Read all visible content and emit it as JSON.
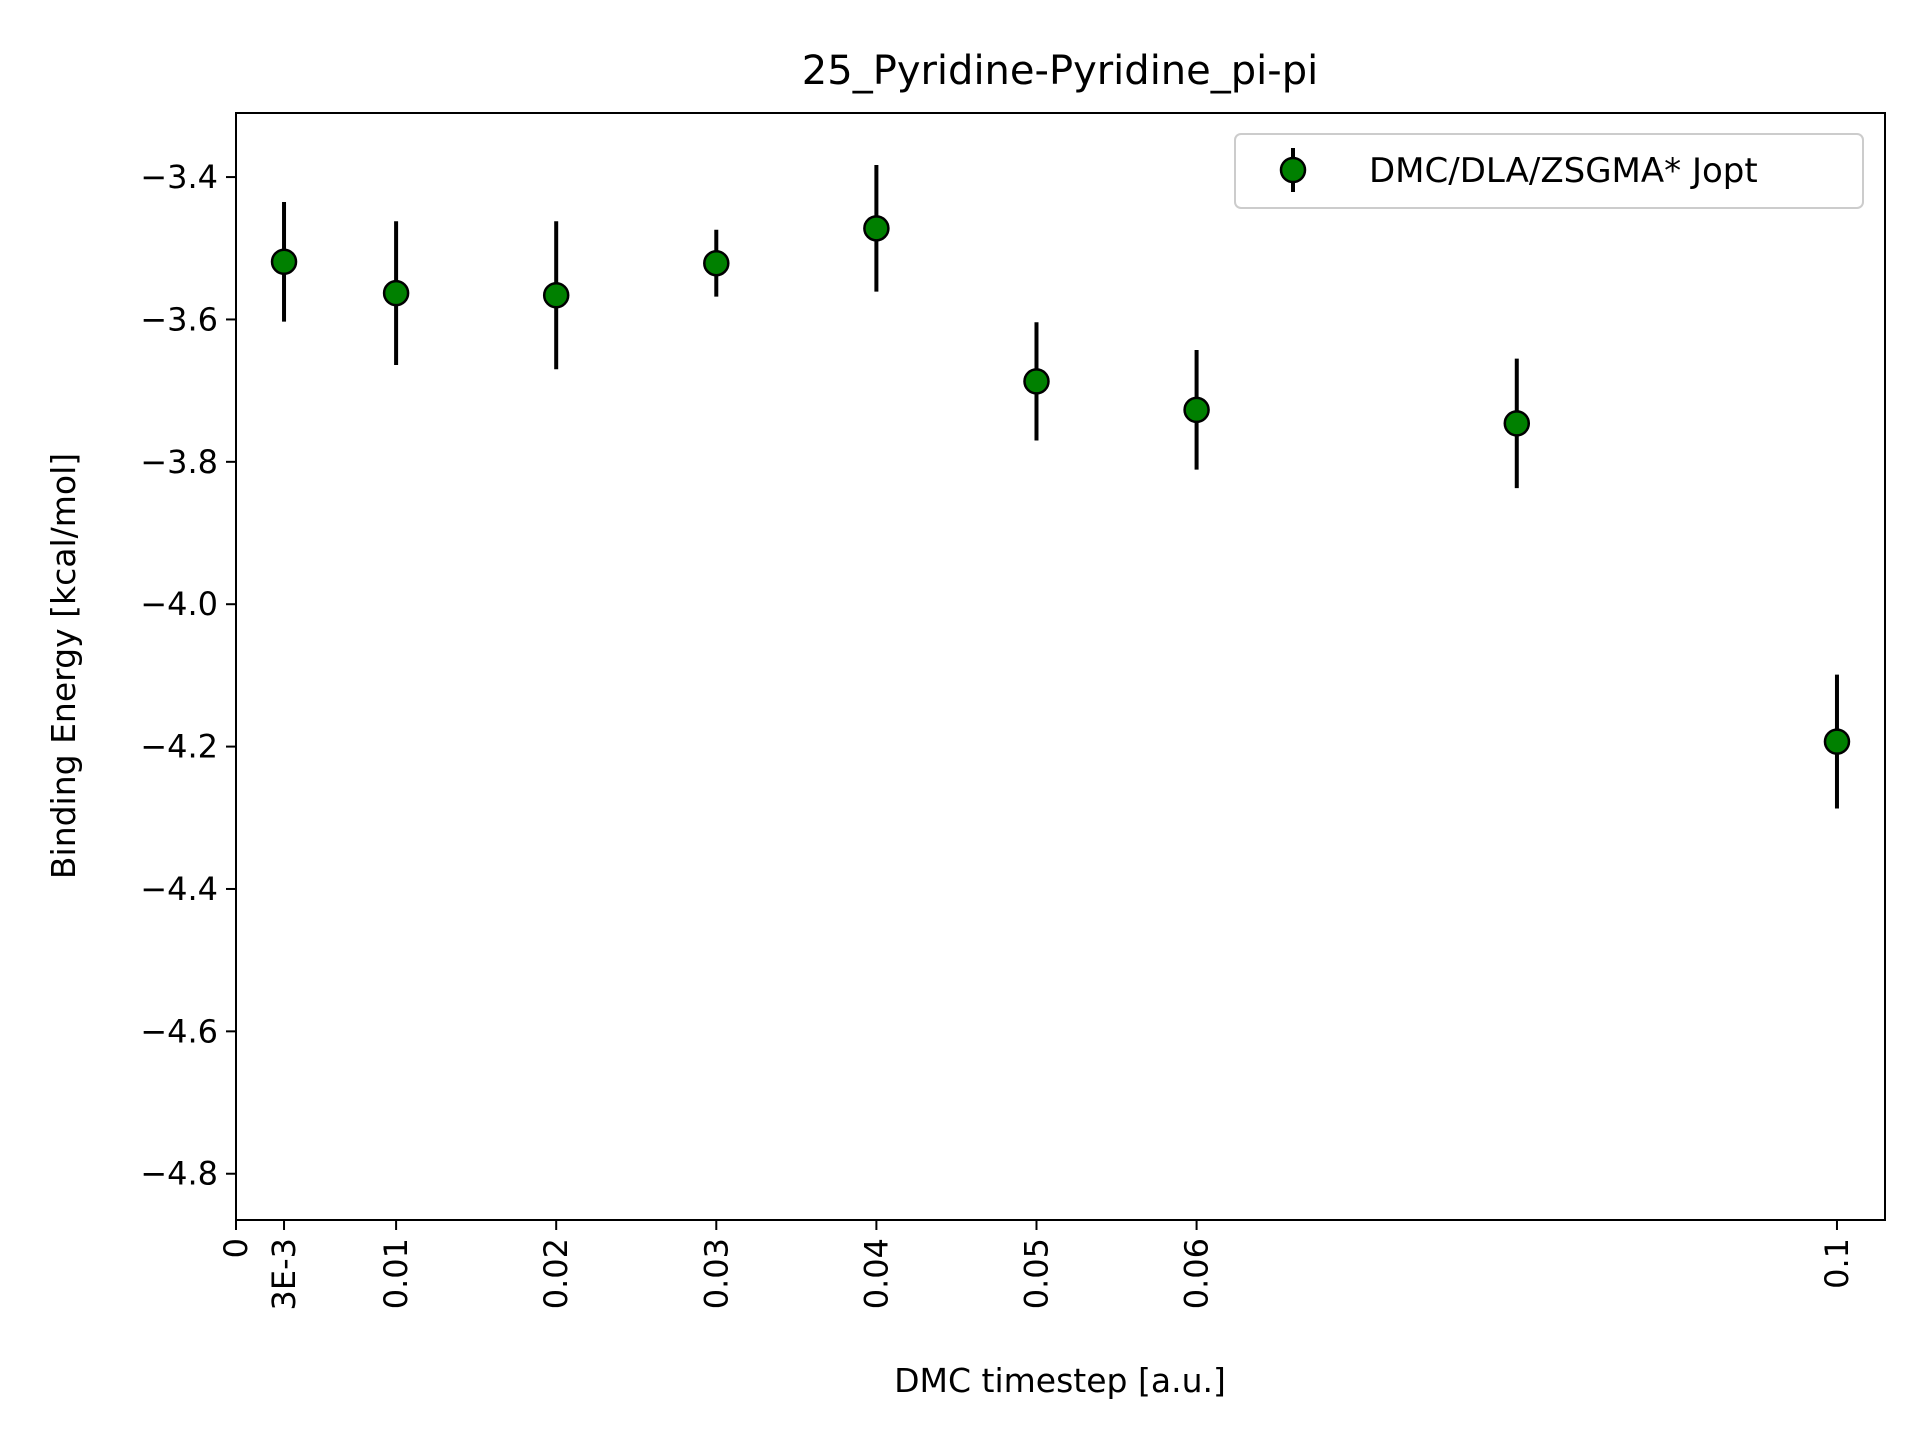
{
  "chart_data": {
    "type": "scatter",
    "title": "25_Pyridine-Pyridine_pi-pi",
    "xlabel": "DMC timestep [a.u.]",
    "ylabel": "Binding Energy [kcal/mol]",
    "xlim": [
      0,
      0.103
    ],
    "ylim": [
      -4.865,
      -3.31
    ],
    "x_ticks": [
      {
        "value": 0,
        "label": "0"
      },
      {
        "value": 0.003,
        "label": "3E-3"
      },
      {
        "value": 0.01,
        "label": "0.01"
      },
      {
        "value": 0.02,
        "label": "0.02"
      },
      {
        "value": 0.03,
        "label": "0.03"
      },
      {
        "value": 0.04,
        "label": "0.04"
      },
      {
        "value": 0.05,
        "label": "0.05"
      },
      {
        "value": 0.06,
        "label": "0.06"
      },
      {
        "value": 0.1,
        "label": "0.1"
      }
    ],
    "y_ticks": [
      {
        "value": -3.4,
        "label": "−3.4"
      },
      {
        "value": -3.6,
        "label": "−3.6"
      },
      {
        "value": -3.8,
        "label": "−3.8"
      },
      {
        "value": -4.0,
        "label": "−4.0"
      },
      {
        "value": -4.2,
        "label": "−4.2"
      },
      {
        "value": -4.4,
        "label": "−4.4"
      },
      {
        "value": -4.6,
        "label": "−4.6"
      },
      {
        "value": -4.8,
        "label": "−4.8"
      }
    ],
    "grid": false,
    "legend_position": "top-right",
    "series": [
      {
        "name": "DMC/DLA/ZSGMA* Jopt",
        "color": "#008000",
        "edge_color": "#000000",
        "error_color": "#000000",
        "points": [
          {
            "x": 0.003,
            "y": -3.519,
            "err": 0.084
          },
          {
            "x": 0.01,
            "y": -3.563,
            "err": 0.101
          },
          {
            "x": 0.02,
            "y": -3.566,
            "err": 0.104
          },
          {
            "x": 0.03,
            "y": -3.521,
            "err": 0.047
          },
          {
            "x": 0.04,
            "y": -3.472,
            "err": 0.089
          },
          {
            "x": 0.05,
            "y": -3.687,
            "err": 0.083
          },
          {
            "x": 0.06,
            "y": -3.727,
            "err": 0.084
          },
          {
            "x": 0.08,
            "y": -3.746,
            "err": 0.091
          },
          {
            "x": 0.1,
            "y": -4.193,
            "err": 0.094
          }
        ]
      }
    ]
  }
}
